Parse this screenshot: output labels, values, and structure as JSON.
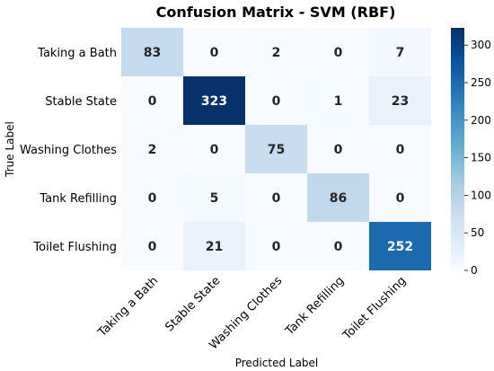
{
  "chart_data": {
    "type": "heatmap",
    "title": "Confusion Matrix - SVM (RBF)",
    "xlabel": "Predicted Label",
    "ylabel": "True Label",
    "row_labels": [
      "Taking a Bath",
      "Stable State",
      "Washing Clothes",
      "Tank Refilling",
      "Toilet Flushing"
    ],
    "col_labels": [
      "Taking a Bath",
      "Stable State",
      "Washing Clothes",
      "Tank Refilling",
      "Toilet Flushing"
    ],
    "values": [
      [
        83,
        0,
        2,
        0,
        7
      ],
      [
        0,
        323,
        0,
        1,
        23
      ],
      [
        2,
        0,
        75,
        0,
        0
      ],
      [
        0,
        5,
        0,
        86,
        0
      ],
      [
        0,
        21,
        0,
        0,
        252
      ]
    ],
    "colorbar": {
      "min": 0,
      "max": 323,
      "ticks": [
        0,
        50,
        100,
        150,
        200,
        250,
        300
      ],
      "colormap": "Blues"
    }
  }
}
